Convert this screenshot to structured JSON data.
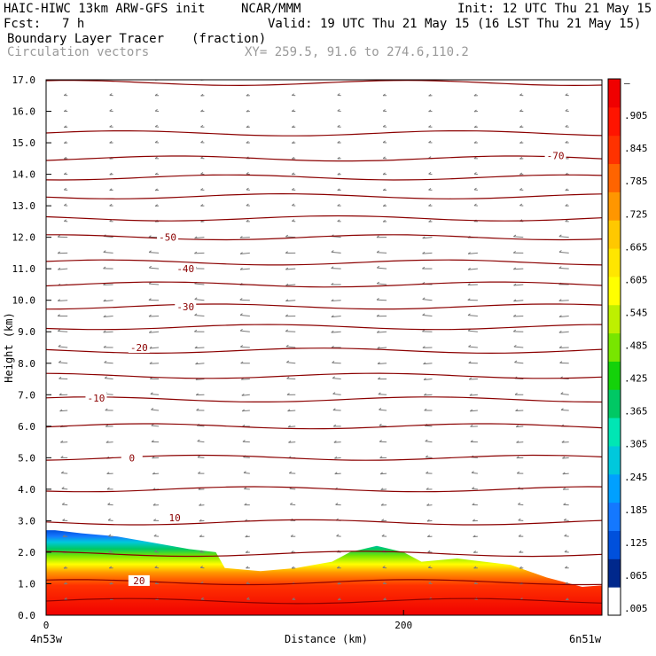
{
  "header": {
    "model": "HAIC-HIWC 13km ARW-GFS init",
    "org": "NCAR/MMM",
    "init": "Init: 12 UTC Thu 21 May 15",
    "fcst_label": "Fcst:",
    "fcst_value": "7 h",
    "valid": "Valid: 19 UTC Thu 21 May 15 (16 LST Thu 21 May 15)",
    "field1": "Boundary Layer Tracer",
    "field1_units": "(fraction)",
    "field2": "Circulation vectors",
    "xy": "XY= 259.5, 91.6 to 274.6,110.2"
  },
  "chart_data": {
    "type": "heatmap",
    "xlabel": "Distance (km)",
    "ylabel": "Height (km)",
    "xlim": [
      0,
      311
    ],
    "ylim": [
      0,
      17
    ],
    "x_ticks": [
      "0",
      "200"
    ],
    "x_end_labels": {
      "left": "4n53w",
      "right": "6n51w"
    },
    "y_ticks": [
      "0.0",
      "1.0",
      "2.0",
      "3.0",
      "4.0",
      "5.0",
      "6.0",
      "7.0",
      "8.0",
      "9.0",
      "10.0",
      "11.0",
      "12.0",
      "13.0",
      "14.0",
      "15.0",
      "16.0",
      "17.0"
    ],
    "colorbar": {
      "labels": [
        ".005",
        ".065",
        ".125",
        ".185",
        ".245",
        ".305",
        ".365",
        ".425",
        ".485",
        ".545",
        ".605",
        ".665",
        ".725",
        ".785",
        ".845",
        ".905",
        "–"
      ],
      "colors": [
        "#ffffff",
        "#00288c",
        "#0050dc",
        "#1478ff",
        "#00a0ff",
        "#00c8dc",
        "#00e6b4",
        "#00c864",
        "#14d20a",
        "#78e600",
        "#bef000",
        "#ffff00",
        "#ffe600",
        "#ffc800",
        "#ff9600",
        "#ff6400",
        "#ff3200",
        "#ff1400",
        "#f00000"
      ]
    },
    "isotherm_labels": [
      {
        "text": "-70",
        "x": 285,
        "y": 14.6
      },
      {
        "text": "-50",
        "x": 68,
        "y": 12.0
      },
      {
        "text": "-40",
        "x": 78,
        "y": 11.0
      },
      {
        "text": "-40",
        "x": 385,
        "y": 11.0
      },
      {
        "text": "-30",
        "x": 78,
        "y": 9.8
      },
      {
        "text": "-30",
        "x": 375,
        "y": 9.8
      },
      {
        "text": "-20",
        "x": 52,
        "y": 8.5
      },
      {
        "text": "-20",
        "x": 378,
        "y": 8.5
      },
      {
        "text": "-10",
        "x": 28,
        "y": 6.9
      },
      {
        "text": "-10",
        "x": 376,
        "y": 6.9
      },
      {
        "text": "0",
        "x": 48,
        "y": 5.0
      },
      {
        "text": "0",
        "x": 373,
        "y": 5.0
      },
      {
        "text": "10",
        "x": 72,
        "y": 3.1
      },
      {
        "text": "10",
        "x": 375,
        "y": 3.0
      },
      {
        "text": "20",
        "x": 52,
        "y": 1.1
      },
      {
        "text": "20",
        "x": 376,
        "y": 0.9
      }
    ],
    "isotherm_heights_km": [
      0.45,
      1.05,
      1.95,
      2.95,
      4.0,
      5.0,
      6.0,
      6.85,
      7.6,
      8.4,
      9.15,
      9.8,
      10.5,
      11.2,
      12.0,
      12.6,
      13.3,
      13.9,
      14.5,
      15.3,
      16.9
    ],
    "tracer_top_profile": {
      "x": [
        0,
        5,
        20,
        40,
        60,
        80,
        95,
        100,
        120,
        140,
        160,
        170,
        185,
        200,
        210,
        230,
        260,
        280,
        300,
        311
      ],
      "top_km": [
        2.7,
        2.7,
        2.6,
        2.5,
        2.3,
        2.1,
        2.0,
        1.5,
        1.4,
        1.5,
        1.7,
        2.0,
        2.2,
        2.0,
        1.7,
        1.8,
        1.6,
        1.2,
        0.9,
        0.95
      ]
    }
  }
}
